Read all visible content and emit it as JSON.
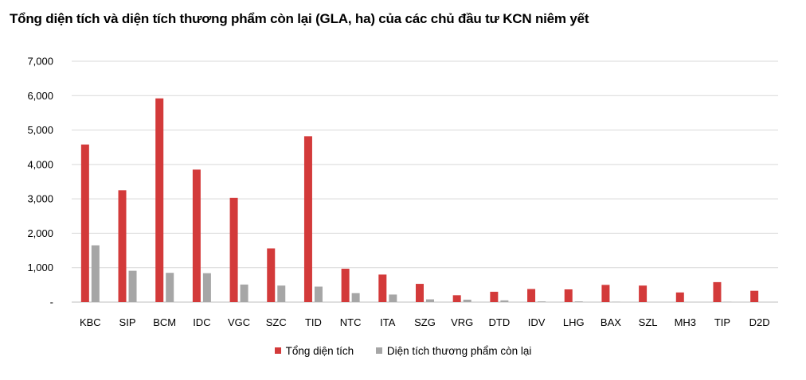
{
  "title": "Tổng diện tích và diện tích thương phẩm còn lại (GLA, ha) của các chủ đầu tư KCN niêm yết",
  "chart_data": {
    "type": "bar",
    "title": "Tổng diện tích và diện tích thương phẩm còn lại (GLA, ha) của các chủ đầu tư KCN niêm yết",
    "categories": [
      "KBC",
      "SIP",
      "BCM",
      "IDC",
      "VGC",
      "SZC",
      "TID",
      "NTC",
      "ITA",
      "SZG",
      "VRG",
      "DTD",
      "IDV",
      "LHG",
      "BAX",
      "SZL",
      "MH3",
      "TIP",
      "D2D"
    ],
    "series": [
      {
        "name": "Tổng diện tích",
        "color": "#d33a3a",
        "values": [
          4580,
          3250,
          5920,
          3850,
          3030,
          1560,
          4820,
          970,
          800,
          530,
          200,
          300,
          380,
          370,
          500,
          480,
          280,
          580,
          330
        ]
      },
      {
        "name": "Diện tích thương phẩm còn lại",
        "color": "#a6a6a6",
        "values": [
          1650,
          910,
          850,
          840,
          510,
          480,
          450,
          260,
          220,
          80,
          70,
          50,
          20,
          20,
          10,
          0,
          0,
          10,
          0
        ]
      }
    ],
    "ylim": [
      0,
      7000
    ],
    "yticks": [
      0,
      1000,
      2000,
      3000,
      4000,
      5000,
      6000,
      7000
    ],
    "ytick_labels": [
      "-",
      "1,000",
      "2,000",
      "3,000",
      "4,000",
      "5,000",
      "6,000",
      "7,000"
    ],
    "grid": true,
    "legend": "bottom",
    "xlabel": "",
    "ylabel": ""
  }
}
